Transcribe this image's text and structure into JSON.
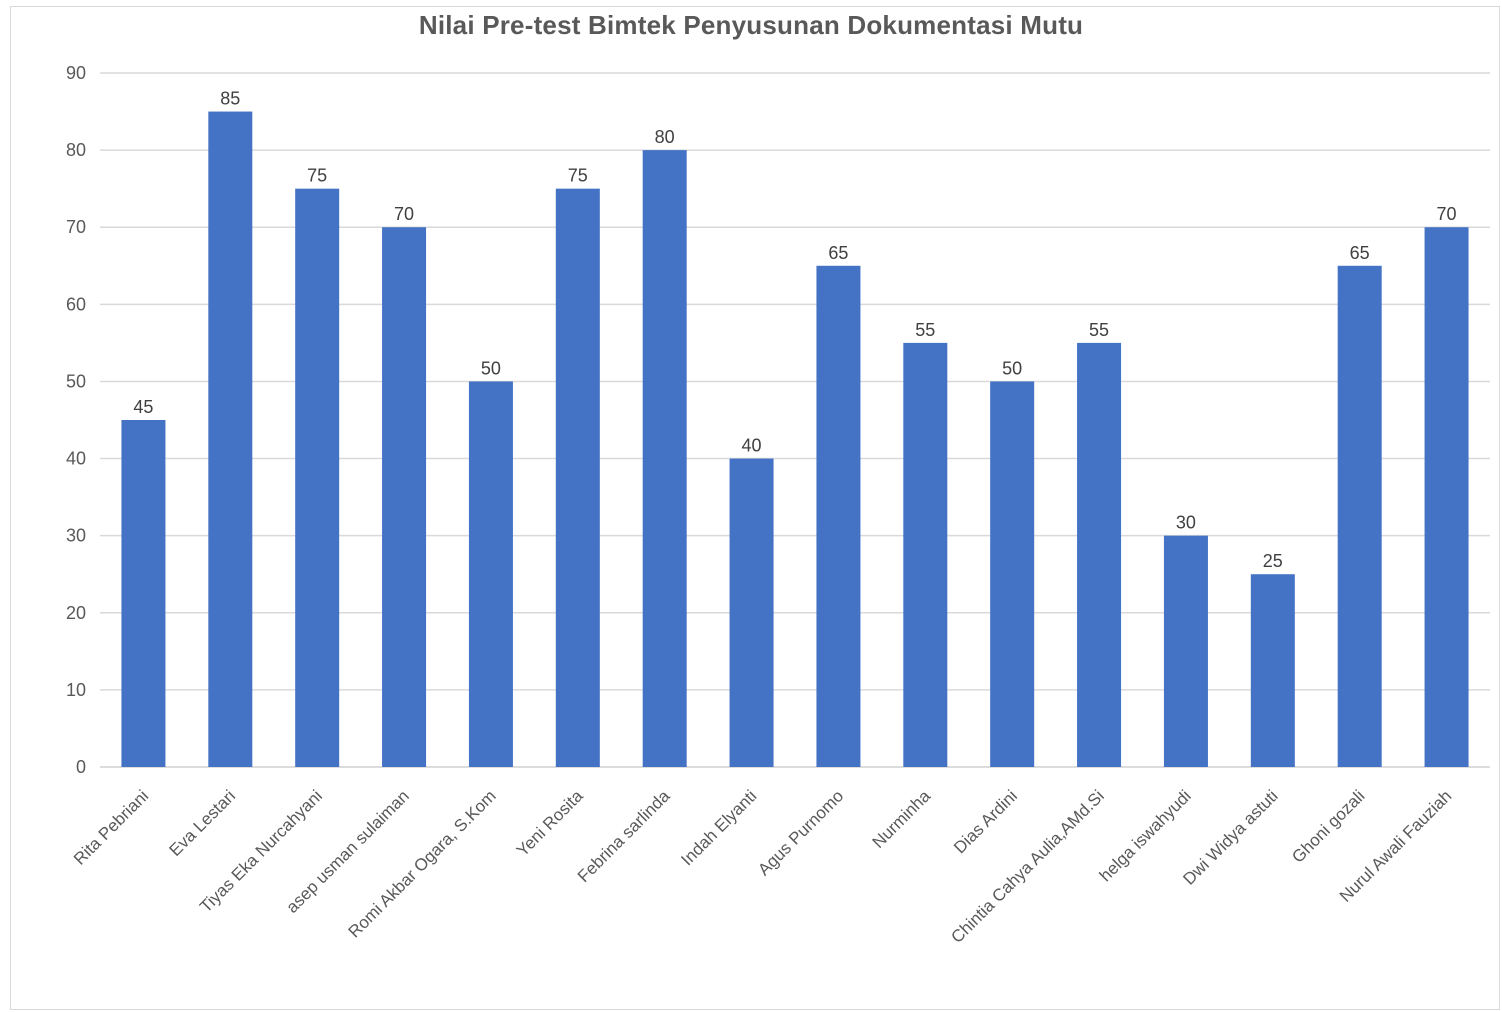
{
  "chart_data": {
    "type": "bar",
    "title": "Nilai Pre-test Bimtek Penyusunan Dokumentasi Mutu",
    "xlabel": "",
    "ylabel": "",
    "categories": [
      "Rita Pebriani",
      "Eva Lestari",
      "Tiyas Eka Nurcahyani",
      "asep usman sulaiman",
      "Romi Akbar Ogara, S.Kom",
      "Yeni Rosita",
      "Febrina sarlinda",
      "Indah Elyanti",
      "Agus Purnomo",
      "Nurminha",
      "Dias Ardini",
      "Chintia Cahya Aulia,AMd.Si",
      "helga iswahyudi",
      "Dwi Widya astuti",
      "Ghoni gozali",
      "Nurul Awali Fauziah"
    ],
    "values": [
      45,
      85,
      75,
      70,
      50,
      75,
      80,
      40,
      65,
      55,
      50,
      55,
      30,
      25,
      65,
      70
    ],
    "ylim": [
      0,
      90
    ],
    "yticks": [
      0,
      10,
      20,
      30,
      40,
      50,
      60,
      70,
      80,
      90
    ],
    "grid": true,
    "legend": "none",
    "data_labels": true,
    "bar_color": "#4472C4",
    "grid_color": "#d9d9d9"
  }
}
